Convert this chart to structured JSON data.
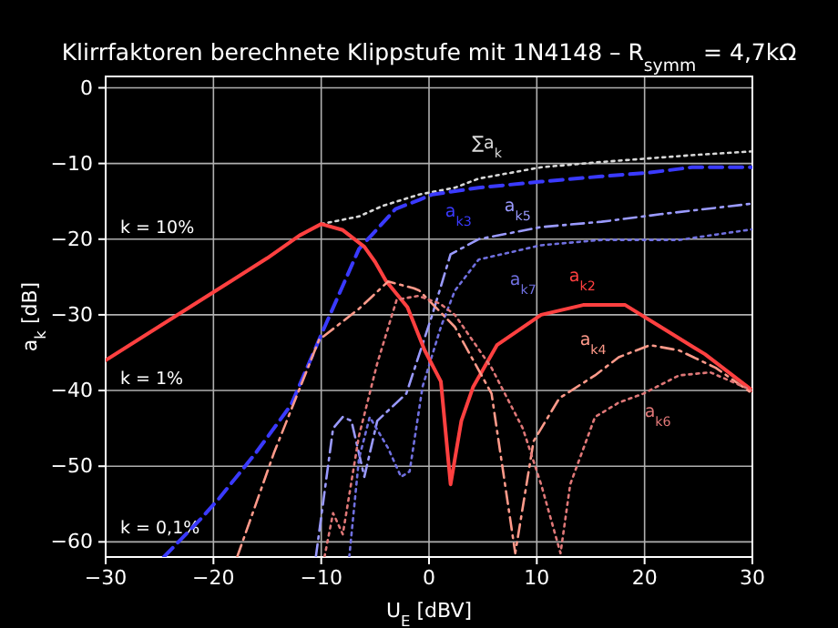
{
  "chart_data": {
    "type": "line",
    "title": "Klirrfaktoren berechnete Klippstufe mit 1N4148 – R$_{symm}$ = 4,7kΩ",
    "xlabel": "U$_{E}$ [dBV]",
    "ylabel": "a$_{k}$ [dB]",
    "xlim": [
      -30,
      30
    ],
    "ylim": [
      -62,
      1.5
    ],
    "xticks": [
      -30,
      -20,
      -10,
      0,
      10,
      20,
      30
    ],
    "yticks": [
      -60,
      -50,
      -40,
      -30,
      -20,
      -10,
      0
    ],
    "grid": true,
    "annotations": [
      "k = 10%",
      "k = 1%",
      "k = 0,1%"
    ],
    "series": [
      {
        "name": "∑a$_{k}$",
        "color": "#d8d8d8",
        "line_style": "dotted",
        "x": [
          -10,
          -6.5,
          -4.3,
          -0.9,
          2.4,
          4.6,
          10.4,
          16,
          24.4,
          30
        ],
        "values": [
          -18,
          -17,
          -15.6,
          -14.1,
          -13.2,
          -12,
          -10.5,
          -9.8,
          -8.9,
          -8.4
        ]
      },
      {
        "name": "a$_{k3}$",
        "color": "#3a3aff",
        "line_style": "dashed",
        "x": [
          -24.6,
          -21.2,
          -19.5,
          -16.1,
          -12.8,
          -9.9,
          -6.5,
          -3.1,
          -0.9,
          0.3,
          4.6,
          10.4,
          16,
          20.5,
          24.4,
          30
        ],
        "values": [
          -62,
          -57,
          -54.3,
          -48.3,
          -41.9,
          -32.3,
          -21.3,
          -16,
          -14.8,
          -14.1,
          -13.2,
          -12.4,
          -11.7,
          -11.2,
          -10.5,
          -10.5
        ]
      },
      {
        "name": "a$_{k5}$",
        "color": "#9a9aff",
        "line_style": "dashdot",
        "x": [
          -10.5,
          -8.9,
          -8,
          -7.2,
          -6,
          -4.8,
          -2.1,
          0.3,
          2,
          4.6,
          10.4,
          16,
          21.5,
          30
        ],
        "values": [
          -62,
          -45,
          -43.5,
          -44,
          -51.4,
          -44,
          -40.4,
          -30,
          -22,
          -20,
          -18.4,
          -17.7,
          -16.7,
          -15.3
        ]
      },
      {
        "name": "a$_{k7}$",
        "color": "#7070e0",
        "line_style": "dotted",
        "x": [
          -7.4,
          -6.5,
          -5.5,
          -3.8,
          -2.6,
          -1.8,
          -0.6,
          1.1,
          2.4,
          4.6,
          10.4,
          16,
          23.2,
          30
        ],
        "values": [
          -62,
          -49,
          -43.5,
          -47.6,
          -51.4,
          -50.7,
          -39.5,
          -31.6,
          -26.8,
          -22.7,
          -20.8,
          -20.1,
          -20.1,
          -18.7
        ]
      },
      {
        "name": "a$_{k2}$",
        "color": "#ff4040",
        "line_style": "solid",
        "x": [
          -30,
          -20,
          -15,
          -12,
          -10,
          -8,
          -6,
          -5,
          -4,
          -2,
          -0.4,
          1.1,
          2,
          3,
          4.1,
          6.3,
          10.4,
          14.3,
          18.2,
          21.5,
          25.6,
          30
        ],
        "values": [
          -36,
          -27,
          -22.5,
          -19.5,
          -18,
          -18.8,
          -21,
          -23,
          -25.5,
          -29,
          -34.7,
          -38.8,
          -52.4,
          -44,
          -39.5,
          -34,
          -30,
          -28.7,
          -28.7,
          -31.6,
          -35.2,
          -40
        ]
      },
      {
        "name": "a$_{k4}$",
        "color": "#ff9a8a",
        "line_style": "dashdot",
        "x": [
          -17.8,
          -14.4,
          -10.2,
          -6.5,
          -3.8,
          -1.4,
          -0.9,
          2.4,
          5.8,
          8,
          9.7,
          12.1,
          15.4,
          17.6,
          20.5,
          23.2,
          26.6,
          30
        ],
        "values": [
          -62,
          -48.3,
          -33.3,
          -29.2,
          -25.6,
          -26.5,
          -26.8,
          -31.6,
          -40.4,
          -61.5,
          -46.7,
          -41,
          -38,
          -35.6,
          -34,
          -34.7,
          -37,
          -40.4
        ]
      },
      {
        "name": "a$_{k6}$",
        "color": "#e07878",
        "line_style": "dotted",
        "x": [
          -9.7,
          -8.9,
          -8,
          -6.5,
          -4.8,
          -3,
          -1,
          1,
          2.4,
          5.8,
          8.7,
          10.4,
          12.2,
          13.1,
          15.4,
          17.6,
          19.9,
          23.2,
          26.1,
          30
        ],
        "values": [
          -62,
          -56.2,
          -59,
          -46,
          -36.4,
          -28,
          -27.5,
          -28.5,
          -30,
          -37,
          -45,
          -52.4,
          -61.5,
          -52.4,
          -43.5,
          -41.6,
          -40.4,
          -38,
          -37.6,
          -40
        ]
      }
    ]
  }
}
